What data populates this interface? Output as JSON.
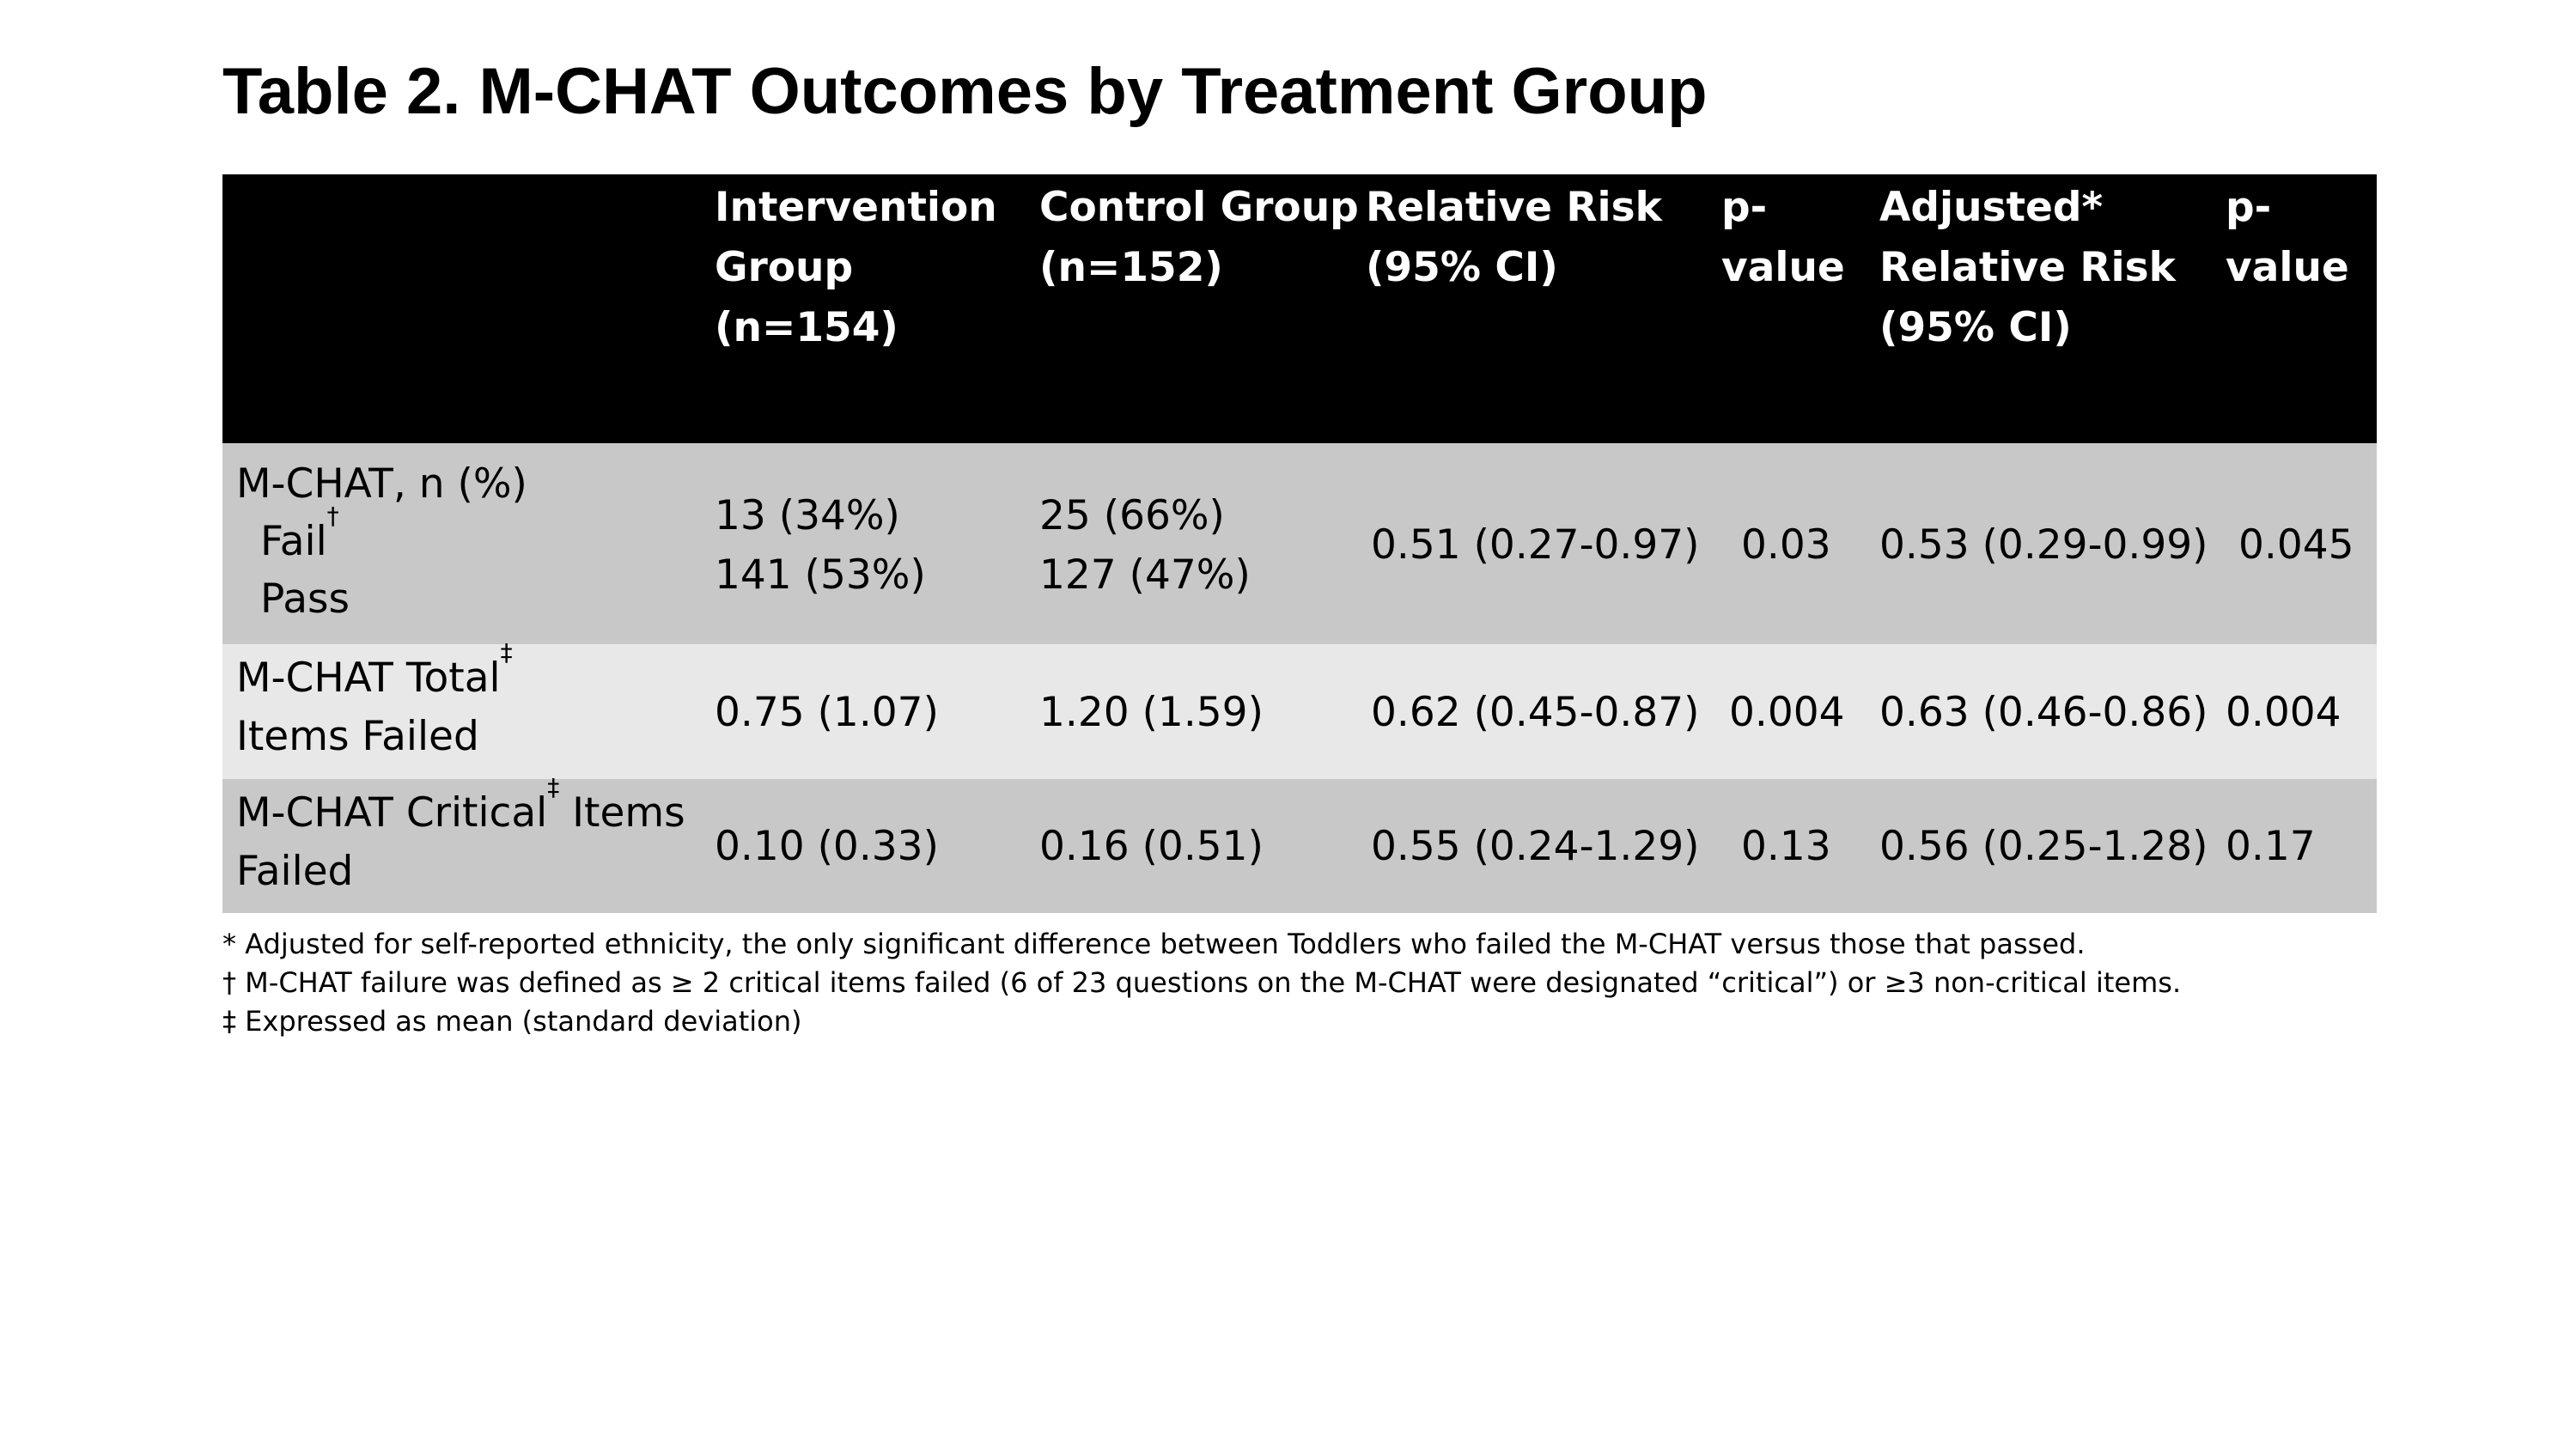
{
  "title": "Table 2. M-CHAT Outcomes by Treatment Group",
  "columns": {
    "intervention": [
      "Intervention",
      "Group",
      "(n=154)"
    ],
    "control": [
      "Control Group",
      "(n=152)"
    ],
    "rr": [
      "Relative Risk",
      "(95% CI)"
    ],
    "p1": [
      "p-",
      "value"
    ],
    "arr": [
      "Adjusted*",
      "Relative Risk",
      "(95% CI)"
    ],
    "p2": [
      "p-",
      "value"
    ]
  },
  "rows": {
    "mchat": {
      "label_main": "M-CHAT, n (%)",
      "label_fail": "Fail",
      "fail_mark": "†",
      "label_pass": "Pass",
      "intervention_fail": "13 (34%)",
      "intervention_pass": "141 (53%)",
      "control_fail": "25 (66%)",
      "control_pass": "127 (47%)",
      "rr": "0.51 (0.27-0.97)",
      "p1": "0.03",
      "arr": "0.53 (0.29-0.99)",
      "p2": "0.045"
    },
    "total": {
      "label_line1": "M-CHAT Total",
      "mark": "‡",
      "label_line2": "Items Failed",
      "intervention": "0.75 (1.07)",
      "control": "1.20 (1.59)",
      "rr": "0.62 (0.45-0.87)",
      "p1": "0.004",
      "arr": "0.63 (0.46-0.86)",
      "p2": "0.004"
    },
    "critical": {
      "label_line1_a": "M-CHAT Critical",
      "mark": "‡",
      "label_line1_b": " Items",
      "label_line2": "Failed",
      "intervention": "0.10 (0.33)",
      "control": "0.16 (0.51)",
      "rr": "0.55 (0.24-1.29)",
      "p1": "0.13",
      "arr": "0.56 (0.25-1.28)",
      "p2": "0.17"
    }
  },
  "footnotes": [
    "* Adjusted for self-reported ethnicity, the only significant difference between Toddlers who failed the M-CHAT versus those that passed.",
    "† M-CHAT failure was defined as ≥ 2 critical items failed (6 of 23 questions on the M-CHAT were designated “critical”) or ≥3 non-critical items.",
    "‡ Expressed as mean (standard deviation)"
  ]
}
